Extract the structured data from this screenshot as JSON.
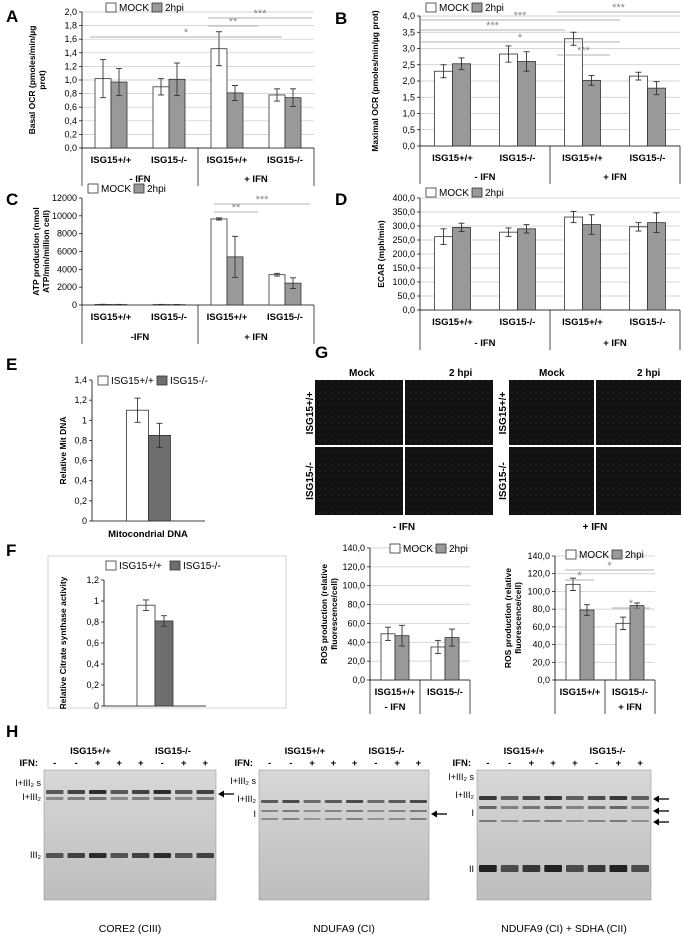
{
  "panels": {
    "A": "A",
    "B": "B",
    "C": "C",
    "D": "D",
    "E": "E",
    "F": "F",
    "G": "G",
    "H": "H"
  },
  "legend": {
    "mock": "MOCK",
    "hpi": "2hpi"
  },
  "colors": {
    "mock": "#ffffff",
    "hpi": "#999999",
    "e_wt": "#ffffff",
    "e_ko": "#6e6e6e"
  },
  "groups": {
    "minus_ifn": "- IFN",
    "plus_ifn": "+ IFN",
    "minus_ifn_c": "-IFN",
    "plus_ifn_c": "+ IFN"
  },
  "categories": [
    "ISG15+/+",
    "ISG15-/-",
    "ISG15+/+",
    "ISG15-/-"
  ],
  "chart_data": [
    {
      "id": "A",
      "type": "bar",
      "ylabel": "Basal OCR (pmoles/min/µg prot)",
      "ylim": [
        0,
        2
      ],
      "yticks": [
        "0,0",
        "0,2",
        "0,4",
        "0,6",
        "0,8",
        "1,0",
        "1,2",
        "1,4",
        "1,6",
        "1,8",
        "2,0"
      ],
      "categories": [
        "ISG15+/+",
        "ISG15-/-",
        "ISG15+/+",
        "ISG15-/-"
      ],
      "series": [
        {
          "name": "MOCK",
          "values": [
            1.02,
            0.9,
            1.46,
            0.78
          ],
          "errors": [
            0.28,
            0.12,
            0.25,
            0.09
          ]
        },
        {
          "name": "2hpi",
          "values": [
            0.97,
            1.01,
            0.81,
            0.74
          ],
          "errors": [
            0.2,
            0.24,
            0.11,
            0.13
          ]
        }
      ],
      "significance": [
        "*",
        "**",
        "***"
      ]
    },
    {
      "id": "B",
      "type": "bar",
      "ylabel": "Maximal OCR (pmoles/min/µg prot)",
      "ylim": [
        0,
        4
      ],
      "yticks": [
        "0,0",
        "0,5",
        "1,0",
        "1,5",
        "2,0",
        "2,5",
        "3,0",
        "3,5",
        "4,0"
      ],
      "categories": [
        "ISG15+/+",
        "ISG15-/-",
        "ISG15+/+",
        "ISG15-/-"
      ],
      "series": [
        {
          "name": "MOCK",
          "values": [
            2.3,
            2.83,
            3.3,
            2.15
          ],
          "errors": [
            0.2,
            0.25,
            0.2,
            0.12
          ]
        },
        {
          "name": "2hpi",
          "values": [
            2.53,
            2.6,
            2.02,
            1.78
          ],
          "errors": [
            0.18,
            0.3,
            0.15,
            0.2
          ]
        }
      ],
      "significance": [
        "*",
        "***",
        "***",
        "***"
      ]
    },
    {
      "id": "C",
      "type": "bar",
      "ylabel": "ATP production (nmol ATP/min/million cell)",
      "ylim": [
        0,
        12000
      ],
      "yticks": [
        "0",
        "2000",
        "4000",
        "6000",
        "8000",
        "10000",
        "12000"
      ],
      "categories": [
        "ISG15+/+",
        "ISG15-/-",
        "ISG15+/+",
        "ISG15-/-"
      ],
      "series": [
        {
          "name": "MOCK",
          "values": [
            60,
            50,
            9650,
            3400
          ],
          "errors": [
            20,
            20,
            120,
            150
          ]
        },
        {
          "name": "2hpi",
          "values": [
            50,
            40,
            5400,
            2450
          ],
          "errors": [
            20,
            20,
            2300,
            600
          ]
        }
      ],
      "significance": [
        "**",
        "***"
      ]
    },
    {
      "id": "D",
      "type": "bar",
      "ylabel": "ECAR (mph/min)",
      "ylim": [
        0,
        400
      ],
      "yticks": [
        "0,0",
        "50,0",
        "100,0",
        "150,0",
        "200,0",
        "250,0",
        "300,0",
        "350,0",
        "400,0"
      ],
      "categories": [
        "ISG15+/+",
        "ISG15-/-",
        "ISG15+/+",
        "ISG15-/-"
      ],
      "series": [
        {
          "name": "MOCK",
          "values": [
            262,
            278,
            332,
            297
          ],
          "errors": [
            28,
            15,
            20,
            15
          ]
        },
        {
          "name": "2hpi",
          "values": [
            295,
            290,
            305,
            312
          ],
          "errors": [
            15,
            15,
            35,
            35
          ]
        }
      ]
    },
    {
      "id": "E",
      "type": "bar",
      "ylabel": "Relative Mit DNA",
      "xlabel": "Mitocondrial DNA",
      "ylim": [
        0,
        1.4
      ],
      "yticks": [
        "0",
        "0,2",
        "0,4",
        "0,6",
        "0,8",
        "1",
        "1,2",
        "1,4"
      ],
      "series": [
        {
          "name": "ISG15+/+",
          "values": [
            1.1
          ],
          "errors": [
            0.12
          ]
        },
        {
          "name": "ISG15-/-",
          "values": [
            0.85
          ],
          "errors": [
            0.12
          ]
        }
      ]
    },
    {
      "id": "F",
      "type": "bar",
      "ylabel": "Relative Citrate synthase activity",
      "ylim": [
        0,
        1.2
      ],
      "yticks": [
        "0",
        "0,2",
        "0,4",
        "0,6",
        "0,8",
        "1",
        "1,2"
      ],
      "series": [
        {
          "name": "ISG15+/+",
          "values": [
            0.96
          ],
          "errors": [
            0.05
          ]
        },
        {
          "name": "ISG15-/-",
          "values": [
            0.81
          ],
          "errors": [
            0.05
          ]
        }
      ]
    },
    {
      "id": "G-left",
      "type": "bar",
      "ylabel": "ROS production (relative fluorescence/cell)",
      "ylim": [
        0,
        140
      ],
      "yticks": [
        "0,0",
        "20,0",
        "40,0",
        "60,0",
        "80,0",
        "100,0",
        "120,0",
        "140,0"
      ],
      "categories": [
        "ISG15+/+",
        "ISG15-/-"
      ],
      "series": [
        {
          "name": "MOCK",
          "values": [
            49,
            35
          ],
          "errors": [
            7,
            7
          ]
        },
        {
          "name": "2hpi",
          "values": [
            47,
            45
          ],
          "errors": [
            11,
            9
          ]
        }
      ],
      "group": "- IFN"
    },
    {
      "id": "G-right",
      "type": "bar",
      "ylabel": "ROS production (relative fluorescence/cell)",
      "ylim": [
        0,
        140
      ],
      "yticks": [
        "0,0",
        "20,0",
        "40,0",
        "60,0",
        "80,0",
        "100,0",
        "120,0",
        "140,0"
      ],
      "categories": [
        "ISG15+/+",
        "ISG15-/-"
      ],
      "series": [
        {
          "name": "MOCK",
          "values": [
            108,
            64
          ],
          "errors": [
            7,
            7
          ]
        },
        {
          "name": "2hpi",
          "values": [
            79,
            84
          ],
          "errors": [
            6,
            3
          ]
        }
      ],
      "group": "+ IFN",
      "significance": [
        "*",
        "*",
        "*"
      ]
    }
  ],
  "legendE": {
    "wt": "ISG15+/+",
    "ko": "ISG15-/-"
  },
  "microscopy": {
    "mock": "Mock",
    "hpi": "2 hpi",
    "wt": "ISG15+/+",
    "ko": "ISG15-/-",
    "minus": "- IFN",
    "plus": "+ IFN"
  },
  "blots": {
    "ifn_label": "IFN:",
    "wt": "ISG15+/+",
    "ko": "ISG15-/-",
    "signs": [
      "-",
      "-",
      "+",
      "+",
      "+",
      "-",
      "+",
      "+"
    ],
    "band_I_III2S": "I+III₂ s",
    "band_I_III2": "I+III₂",
    "band_III2": "III₂",
    "band_I": "I",
    "band_II": "II",
    "caption1": "CORE2 (CIII)",
    "caption2": "NDUFA9 (CI)",
    "caption3": "NDUFA9 (CI) + SDHA (CII)"
  }
}
